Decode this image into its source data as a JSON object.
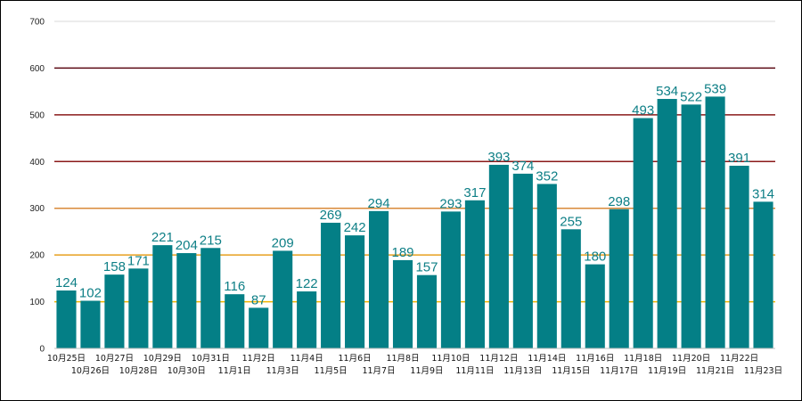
{
  "chart_data": {
    "type": "bar",
    "title": "",
    "xlabel": "",
    "ylabel": "",
    "ylim": [
      0,
      700
    ],
    "yticks": [
      0,
      100,
      200,
      300,
      400,
      500,
      600,
      700
    ],
    "grid": true,
    "legend": "none",
    "bar_color": "#047f86",
    "categories": [
      "10月25日",
      "10月26日",
      "10月27日",
      "10月28日",
      "10月29日",
      "10月30日",
      "10月31日",
      "11月1日",
      "11月2日",
      "11月3日",
      "11月4日",
      "11月5日",
      "11月6日",
      "11月7日",
      "11月8日",
      "11月9日",
      "11月10日",
      "11月11日",
      "11月12日",
      "11月13日",
      "11月14日",
      "11月15日",
      "11月16日",
      "11月17日",
      "11月18日",
      "11月19日",
      "11月20日",
      "11月21日",
      "11月22日",
      "11月23日"
    ],
    "values": [
      124,
      102,
      158,
      171,
      221,
      204,
      215,
      116,
      87,
      209,
      122,
      269,
      242,
      294,
      189,
      157,
      293,
      317,
      393,
      374,
      352,
      255,
      180,
      298,
      493,
      534,
      522,
      539,
      391,
      314
    ],
    "threshold_lines": [
      {
        "value": 100,
        "color": "#f0b400"
      },
      {
        "value": 200,
        "color": "#e8a020"
      },
      {
        "value": 300,
        "color": "#d98a3a"
      },
      {
        "value": 400,
        "color": "#8b1a1a"
      },
      {
        "value": 500,
        "color": "#8b1a1a"
      },
      {
        "value": 600,
        "color": "#5c0a14"
      }
    ],
    "gridline_color": "#d9d9d9",
    "label_color": "#0e7f86"
  }
}
